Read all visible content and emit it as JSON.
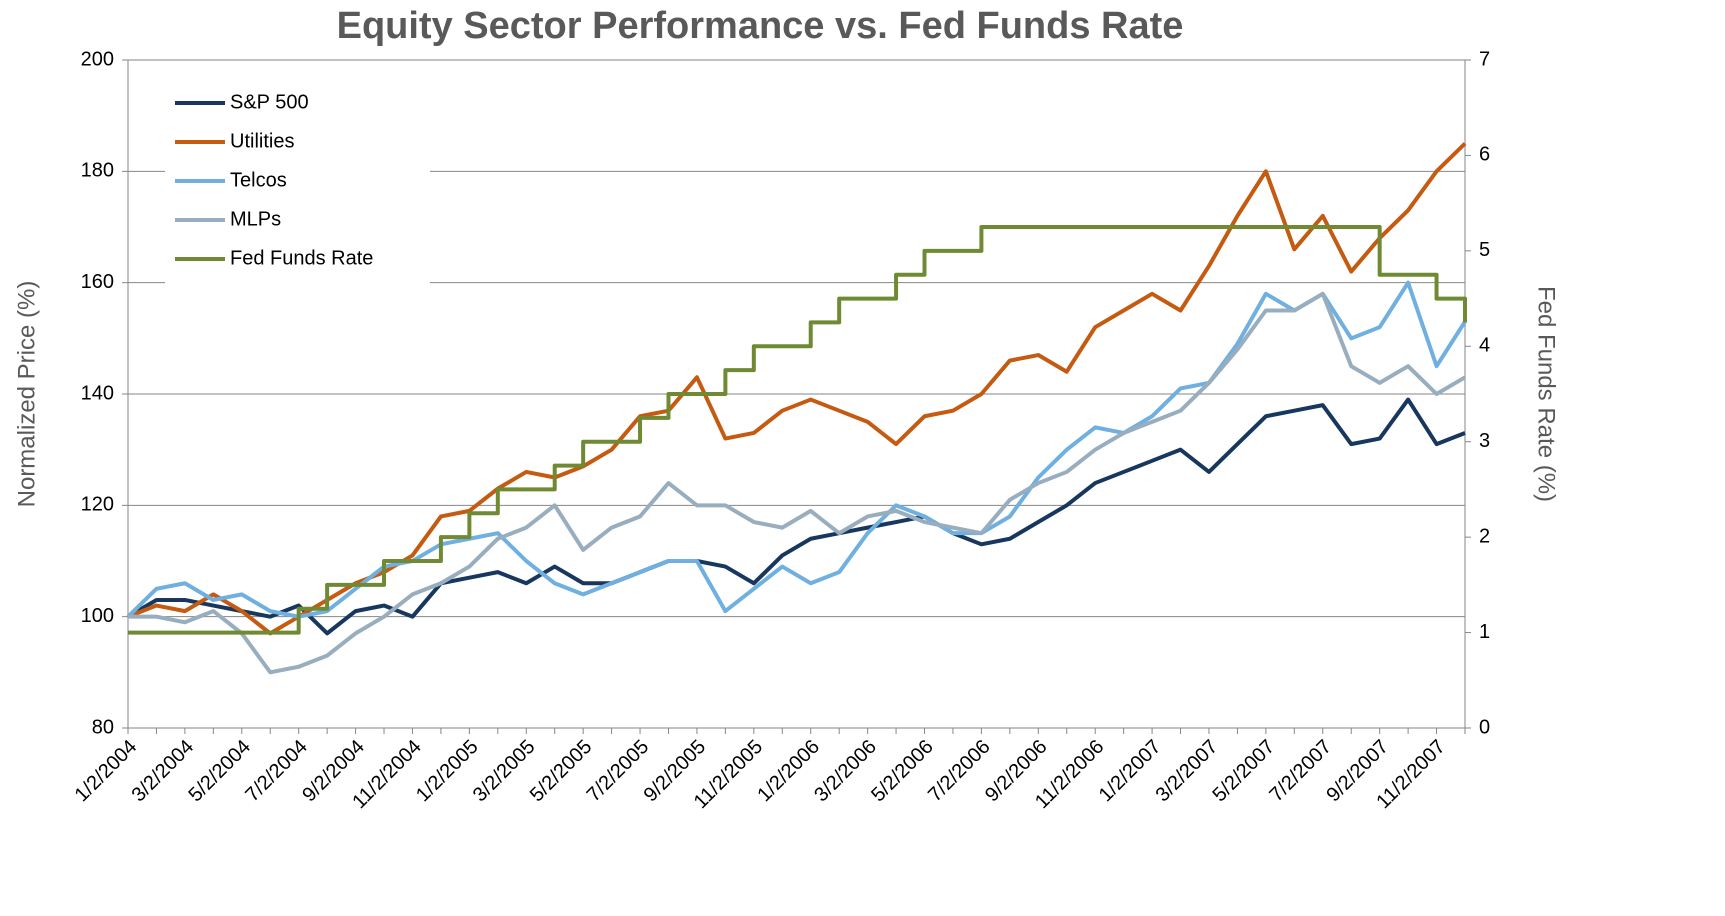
{
  "chart_data": {
    "type": "line",
    "title": "Equity Sector Performance vs. Fed Funds Rate",
    "ylabel": "Normalized Price (%)",
    "y2label": "Fed Funds Rate (%)",
    "categories": [
      "1/2/2004",
      null,
      "3/2/2004",
      null,
      "5/2/2004",
      null,
      "7/2/2004",
      null,
      "9/2/2004",
      null,
      "11/2/2004",
      null,
      "1/2/2005",
      null,
      "3/2/2005",
      null,
      "5/2/2005",
      null,
      "7/2/2005",
      null,
      "9/2/2005",
      null,
      "11/2/2005",
      null,
      "1/2/2006",
      null,
      "3/2/2006",
      null,
      "5/2/2006",
      null,
      "7/2/2006",
      null,
      "9/2/2006",
      null,
      "11/2/2006",
      null,
      "1/2/2007",
      null,
      "3/2/2007",
      null,
      "5/2/2007",
      null,
      "7/2/2007",
      null,
      "9/2/2007",
      null,
      "11/2/2007",
      null
    ],
    "series": [
      {
        "name": "S&P 500",
        "color": "#17375e",
        "values": [
          100,
          103,
          103,
          102,
          101,
          100,
          102,
          97,
          101,
          102,
          100,
          106,
          107,
          108,
          106,
          109,
          106,
          106,
          108,
          110,
          110,
          109,
          106,
          111,
          114,
          115,
          116,
          117,
          118,
          115,
          113,
          114,
          117,
          120,
          124,
          126,
          128,
          130,
          126,
          131,
          136,
          137,
          138,
          131,
          132,
          139,
          131,
          133
        ]
      },
      {
        "name": "Utilities",
        "color": "#c55a11",
        "values": [
          100,
          102,
          101,
          104,
          101,
          97,
          100,
          103,
          106,
          108,
          111,
          118,
          119,
          123,
          126,
          125,
          127,
          130,
          136,
          137,
          143,
          132,
          133,
          137,
          139,
          137,
          135,
          131,
          136,
          137,
          140,
          146,
          147,
          144,
          152,
          155,
          158,
          155,
          163,
          172,
          180,
          166,
          172,
          162,
          168,
          173,
          180,
          185
        ]
      },
      {
        "name": "Telcos",
        "color": "#6fb0e0",
        "values": [
          100,
          105,
          106,
          103,
          104,
          101,
          100,
          101,
          105,
          109,
          110,
          113,
          114,
          115,
          110,
          106,
          104,
          106,
          108,
          110,
          110,
          101,
          105,
          109,
          106,
          108,
          115,
          120,
          118,
          115,
          115,
          118,
          125,
          130,
          134,
          133,
          136,
          141,
          142,
          149,
          158,
          155,
          158,
          150,
          152,
          160,
          145,
          153
        ]
      },
      {
        "name": "MLPs",
        "color": "#98aebf",
        "values": [
          100,
          100,
          99,
          101,
          97,
          90,
          91,
          93,
          97,
          100,
          104,
          106,
          109,
          114,
          116,
          120,
          112,
          116,
          118,
          124,
          120,
          120,
          117,
          116,
          119,
          115,
          118,
          119,
          117,
          116,
          115,
          121,
          124,
          126,
          130,
          133,
          135,
          137,
          142,
          148,
          155,
          155,
          158,
          145,
          142,
          145,
          140,
          143
        ]
      },
      {
        "name": "Fed Funds Rate",
        "color": "#6f8a33",
        "axis": "y2",
        "step": true,
        "values": [
          1,
          1,
          1,
          1,
          1,
          1,
          1.25,
          1.5,
          1.5,
          1.75,
          1.75,
          2,
          2.25,
          2.5,
          2.5,
          2.75,
          3,
          3,
          3.25,
          3.5,
          3.5,
          3.75,
          4,
          4,
          4.25,
          4.5,
          4.5,
          4.75,
          5,
          5,
          5.25,
          5.25,
          5.25,
          5.25,
          5.25,
          5.25,
          5.25,
          5.25,
          5.25,
          5.25,
          5.25,
          5.25,
          5.25,
          5.25,
          4.75,
          4.75,
          4.5,
          4.25
        ]
      }
    ],
    "ylim": [
      80,
      200
    ],
    "yticks": [
      80,
      100,
      120,
      140,
      160,
      180,
      200
    ],
    "y2lim": [
      0,
      7
    ],
    "y2ticks": [
      0,
      1,
      2,
      3,
      4,
      5,
      6,
      7
    ],
    "grid": true,
    "legend": "top-left"
  }
}
